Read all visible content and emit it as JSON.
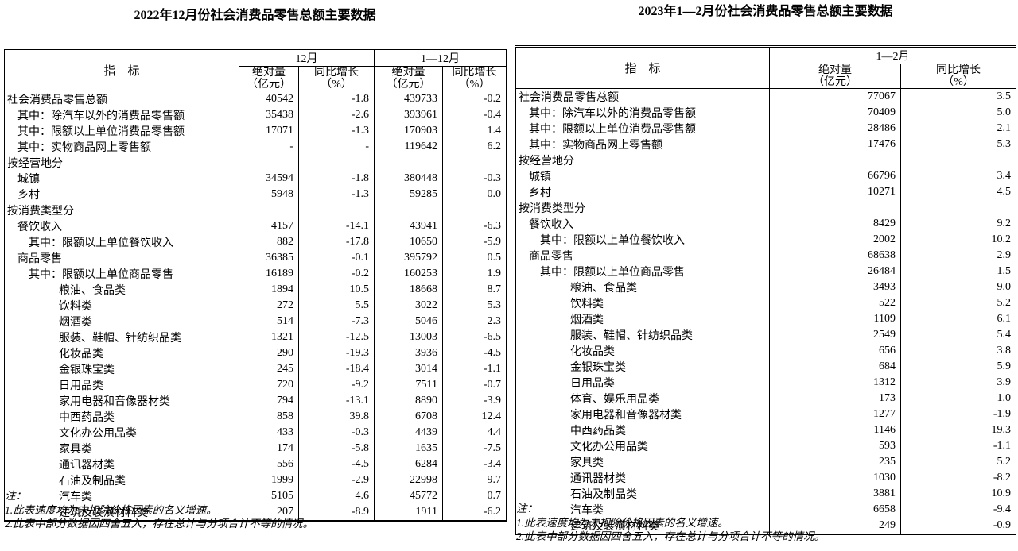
{
  "left_table": {
    "title": "2022年12月份社会消费品零售总额主要数据",
    "header": {
      "indicator": "指　标",
      "period1": "12月",
      "period2": "1—12月",
      "abs_label": "绝对量",
      "abs_unit": "（亿元）",
      "yoy_label": "同比增长",
      "yoy_unit": "（%）"
    },
    "rows": [
      {
        "label": "社会消费品零售总额",
        "indent": 0,
        "values": [
          "40542",
          "-1.8",
          "439733",
          "-0.2"
        ]
      },
      {
        "label": "其中：除汽车以外的消费品零售额",
        "indent": 1,
        "values": [
          "35438",
          "-2.6",
          "393961",
          "-0.4"
        ]
      },
      {
        "label": "其中：限额以上单位消费品零售额",
        "indent": 1,
        "values": [
          "17071",
          "-1.3",
          "170903",
          "1.4"
        ]
      },
      {
        "label": "其中：实物商品网上零售额",
        "indent": 1,
        "values": [
          "-",
          "-",
          "119642",
          "6.2"
        ]
      },
      {
        "label": "按经营地分",
        "indent": 0,
        "values": [
          "",
          "",
          "",
          ""
        ]
      },
      {
        "label": "城镇",
        "indent": 1,
        "values": [
          "34594",
          "-1.8",
          "380448",
          "-0.3"
        ]
      },
      {
        "label": "乡村",
        "indent": 1,
        "values": [
          "5948",
          "-1.3",
          "59285",
          "0.0"
        ]
      },
      {
        "label": "按消费类型分",
        "indent": 0,
        "values": [
          "",
          "",
          "",
          ""
        ]
      },
      {
        "label": "餐饮收入",
        "indent": 1,
        "values": [
          "4157",
          "-14.1",
          "43941",
          "-6.3"
        ]
      },
      {
        "label": "其中：限额以上单位餐饮收入",
        "indent": 2,
        "values": [
          "882",
          "-17.8",
          "10650",
          "-5.9"
        ]
      },
      {
        "label": "商品零售",
        "indent": 1,
        "values": [
          "36385",
          "-0.1",
          "395792",
          "0.5"
        ]
      },
      {
        "label": "其中：限额以上单位商品零售",
        "indent": 2,
        "values": [
          "16189",
          "-0.2",
          "160253",
          "1.9"
        ]
      },
      {
        "label": "粮油、食品类",
        "indent": 3,
        "values": [
          "1894",
          "10.5",
          "18668",
          "8.7"
        ]
      },
      {
        "label": "饮料类",
        "indent": 3,
        "values": [
          "272",
          "5.5",
          "3022",
          "5.3"
        ]
      },
      {
        "label": "烟酒类",
        "indent": 3,
        "values": [
          "514",
          "-7.3",
          "5046",
          "2.3"
        ]
      },
      {
        "label": "服装、鞋帽、针纺织品类",
        "indent": 3,
        "values": [
          "1321",
          "-12.5",
          "13003",
          "-6.5"
        ]
      },
      {
        "label": "化妆品类",
        "indent": 3,
        "values": [
          "290",
          "-19.3",
          "3936",
          "-4.5"
        ]
      },
      {
        "label": "金银珠宝类",
        "indent": 3,
        "values": [
          "245",
          "-18.4",
          "3014",
          "-1.1"
        ]
      },
      {
        "label": "日用品类",
        "indent": 3,
        "values": [
          "720",
          "-9.2",
          "7511",
          "-0.7"
        ]
      },
      {
        "label": "家用电器和音像器材类",
        "indent": 3,
        "values": [
          "794",
          "-13.1",
          "8890",
          "-3.9"
        ]
      },
      {
        "label": "中西药品类",
        "indent": 3,
        "values": [
          "858",
          "39.8",
          "6708",
          "12.4"
        ]
      },
      {
        "label": "文化办公用品类",
        "indent": 3,
        "values": [
          "433",
          "-0.3",
          "4439",
          "4.4"
        ]
      },
      {
        "label": "家具类",
        "indent": 3,
        "values": [
          "174",
          "-5.8",
          "1635",
          "-7.5"
        ]
      },
      {
        "label": "通讯器材类",
        "indent": 3,
        "values": [
          "556",
          "-4.5",
          "6284",
          "-3.4"
        ]
      },
      {
        "label": "石油及制品类",
        "indent": 3,
        "values": [
          "1999",
          "-2.9",
          "22998",
          "9.7"
        ]
      },
      {
        "label": "汽车类",
        "indent": 3,
        "values": [
          "5105",
          "4.6",
          "45772",
          "0.7"
        ]
      },
      {
        "label": "建筑及装潢材料类",
        "indent": 3,
        "values": [
          "207",
          "-8.9",
          "1911",
          "-6.2"
        ]
      }
    ],
    "notes": [
      "注：",
      "1.此表速度均为未扣除价格因素的名义增速。",
      "2.此表中部分数据因四舍五入，存在总计与分项合计不等的情况。"
    ]
  },
  "right_table": {
    "title": "2023年1—2月份社会消费品零售总额主要数据",
    "header": {
      "indicator": "指　标",
      "period1": "1—2月",
      "abs_label": "绝对量",
      "abs_unit": "（亿元）",
      "yoy_label": "同比增长",
      "yoy_unit": "（%）"
    },
    "rows": [
      {
        "label": "社会消费品零售总额",
        "indent": 0,
        "values": [
          "77067",
          "3.5"
        ]
      },
      {
        "label": "其中：除汽车以外的消费品零售额",
        "indent": 1,
        "values": [
          "70409",
          "5.0"
        ]
      },
      {
        "label": "其中：限额以上单位消费品零售额",
        "indent": 1,
        "values": [
          "28486",
          "2.1"
        ]
      },
      {
        "label": "其中：实物商品网上零售额",
        "indent": 1,
        "values": [
          "17476",
          "5.3"
        ]
      },
      {
        "label": "按经营地分",
        "indent": 0,
        "values": [
          "",
          ""
        ]
      },
      {
        "label": "城镇",
        "indent": 1,
        "values": [
          "66796",
          "3.4"
        ]
      },
      {
        "label": "乡村",
        "indent": 1,
        "values": [
          "10271",
          "4.5"
        ]
      },
      {
        "label": "按消费类型分",
        "indent": 0,
        "values": [
          "",
          ""
        ]
      },
      {
        "label": "餐饮收入",
        "indent": 1,
        "values": [
          "8429",
          "9.2"
        ]
      },
      {
        "label": "其中：限额以上单位餐饮收入",
        "indent": 2,
        "values": [
          "2002",
          "10.2"
        ]
      },
      {
        "label": "商品零售",
        "indent": 1,
        "values": [
          "68638",
          "2.9"
        ]
      },
      {
        "label": "其中：限额以上单位商品零售",
        "indent": 2,
        "values": [
          "26484",
          "1.5"
        ]
      },
      {
        "label": "粮油、食品类",
        "indent": 3,
        "values": [
          "3493",
          "9.0"
        ]
      },
      {
        "label": "饮料类",
        "indent": 3,
        "values": [
          "522",
          "5.2"
        ]
      },
      {
        "label": "烟酒类",
        "indent": 3,
        "values": [
          "1109",
          "6.1"
        ]
      },
      {
        "label": "服装、鞋帽、针纺织品类",
        "indent": 3,
        "values": [
          "2549",
          "5.4"
        ]
      },
      {
        "label": "化妆品类",
        "indent": 3,
        "values": [
          "656",
          "3.8"
        ]
      },
      {
        "label": "金银珠宝类",
        "indent": 3,
        "values": [
          "684",
          "5.9"
        ]
      },
      {
        "label": "日用品类",
        "indent": 3,
        "values": [
          "1312",
          "3.9"
        ]
      },
      {
        "label": "体育、娱乐用品类",
        "indent": 3,
        "values": [
          "173",
          "1.0"
        ]
      },
      {
        "label": "家用电器和音像器材类",
        "indent": 3,
        "values": [
          "1277",
          "-1.9"
        ]
      },
      {
        "label": "中西药品类",
        "indent": 3,
        "values": [
          "1146",
          "19.3"
        ]
      },
      {
        "label": "文化办公用品类",
        "indent": 3,
        "values": [
          "593",
          "-1.1"
        ]
      },
      {
        "label": "家具类",
        "indent": 3,
        "values": [
          "235",
          "5.2"
        ]
      },
      {
        "label": "通讯器材类",
        "indent": 3,
        "values": [
          "1030",
          "-8.2"
        ]
      },
      {
        "label": "石油及制品类",
        "indent": 3,
        "values": [
          "3881",
          "10.9"
        ]
      },
      {
        "label": "汽车类",
        "indent": 3,
        "values": [
          "6658",
          "-9.4"
        ]
      },
      {
        "label": "建筑及装潢材料类",
        "indent": 3,
        "values": [
          "249",
          "-0.9"
        ]
      }
    ],
    "notes": [
      "注：",
      "1.此表速度均为未扣除价格因素的名义增速。",
      "2.此表中部分数据因四舍五入，存在总计与分项合计不等的情况。"
    ]
  }
}
